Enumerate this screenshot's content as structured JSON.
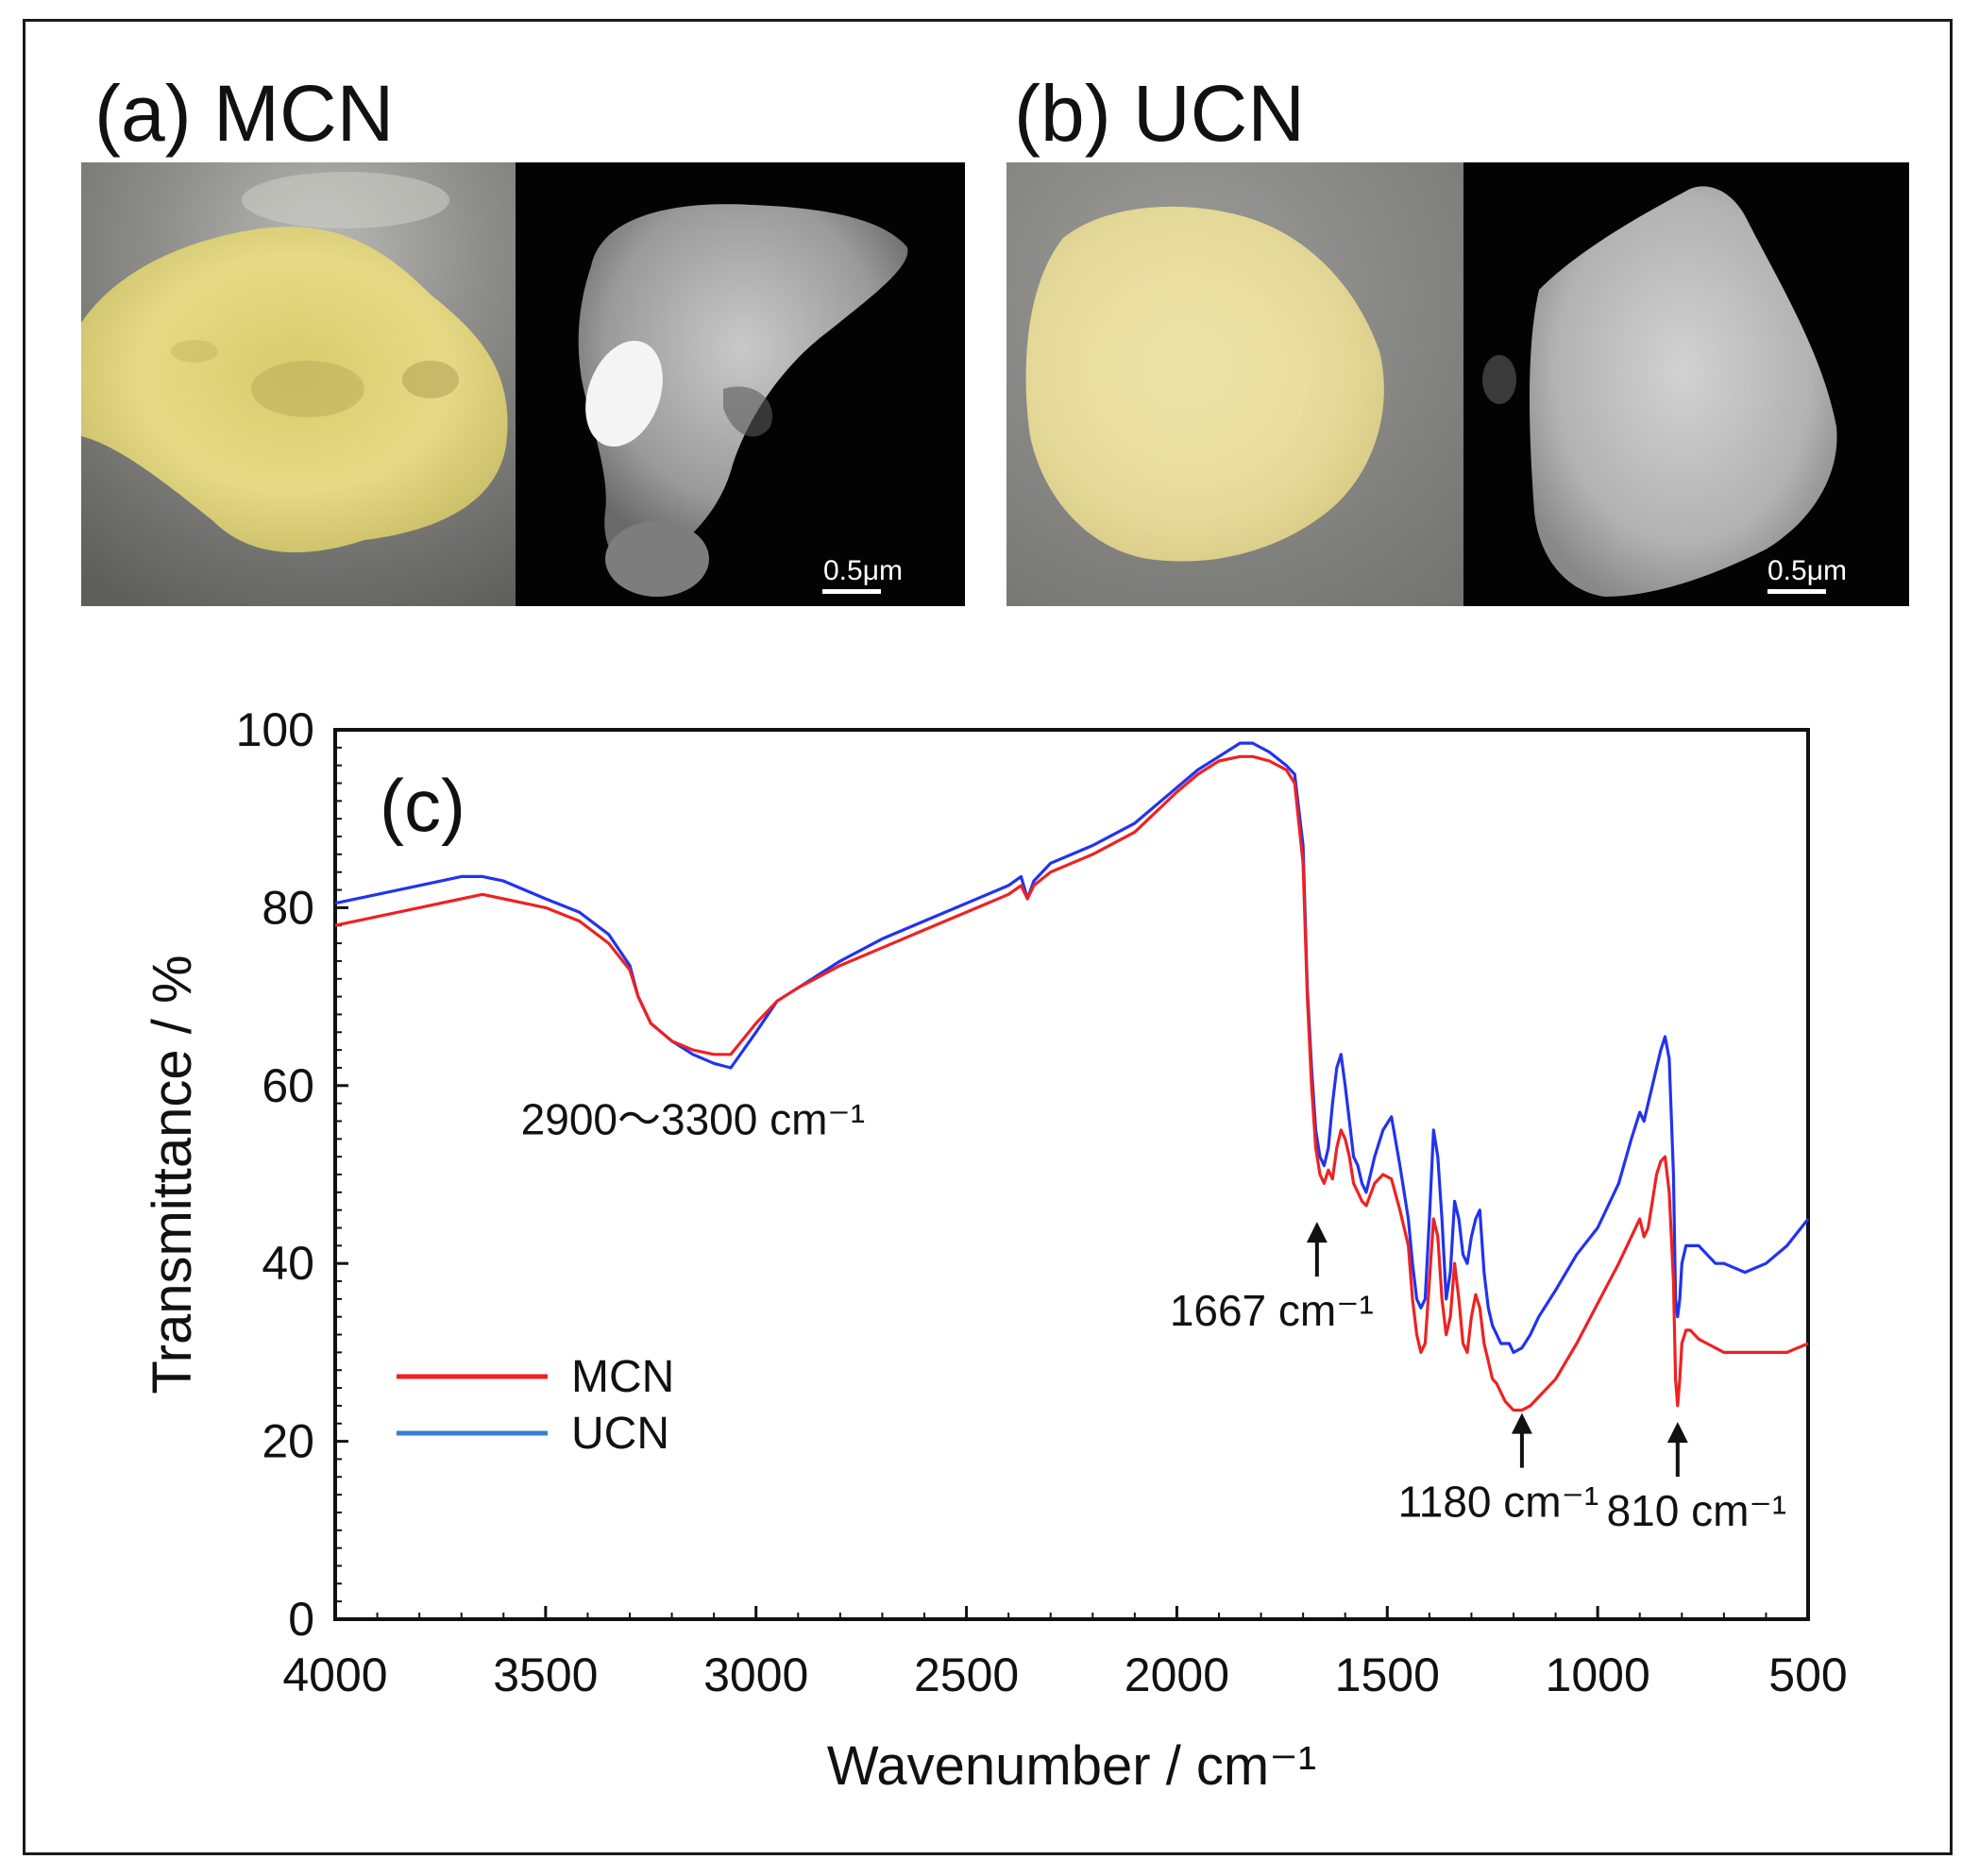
{
  "panels": {
    "a": {
      "label": "(a) MCN",
      "scale_label": "0.5μm"
    },
    "b": {
      "label": "(b) UCN",
      "scale_label": "0.5μm"
    }
  },
  "colors": {
    "mcn": "#ee2222",
    "ucn": "#2233ee",
    "ucn_legend": "#3a7fd0",
    "powder_mcn": "#e4d77c",
    "powder_ucn": "#ebe0a0",
    "background_gray": "#8e8e8c"
  },
  "chart_data": {
    "type": "line",
    "panel_label": "(c)",
    "xlabel": "Wavenumber / cm⁻¹",
    "ylabel": "Transmittance / %",
    "xlim": [
      4000,
      500
    ],
    "ylim": [
      0,
      100
    ],
    "xticks": [
      4000,
      3500,
      3000,
      2500,
      2000,
      1500,
      1000,
      500
    ],
    "yticks": [
      0,
      20,
      40,
      60,
      80,
      100
    ],
    "legend": {
      "position": "lower-left",
      "entries": [
        "MCN",
        "UCN"
      ]
    },
    "annotations": [
      {
        "text": "2900～3300 cm⁻¹",
        "x": 3150,
        "y": 54.5,
        "arrow": false
      },
      {
        "text": "1667 cm⁻¹",
        "x": 1667,
        "y": 33,
        "arrow": true
      },
      {
        "text": "1180 cm⁻¹",
        "x": 1180,
        "y": 11.5,
        "arrow": true
      },
      {
        "text": "810 cm⁻¹",
        "x": 810,
        "y": 10.5,
        "arrow": true
      }
    ],
    "series": [
      {
        "name": "MCN",
        "x": [
          4000,
          3900,
          3800,
          3700,
          3650,
          3600,
          3500,
          3420,
          3350,
          3300,
          3280,
          3250,
          3200,
          3150,
          3100,
          3060,
          3000,
          2950,
          2900,
          2800,
          2700,
          2600,
          2500,
          2400,
          2370,
          2355,
          2340,
          2300,
          2200,
          2100,
          2000,
          1950,
          1900,
          1850,
          1820,
          1780,
          1740,
          1720,
          1700,
          1690,
          1680,
          1670,
          1660,
          1650,
          1640,
          1630,
          1620,
          1610,
          1600,
          1590,
          1580,
          1570,
          1560,
          1550,
          1530,
          1510,
          1490,
          1470,
          1450,
          1440,
          1430,
          1420,
          1410,
          1400,
          1390,
          1380,
          1370,
          1360,
          1350,
          1340,
          1330,
          1320,
          1310,
          1300,
          1290,
          1280,
          1270,
          1260,
          1250,
          1240,
          1230,
          1220,
          1210,
          1200,
          1180,
          1160,
          1140,
          1100,
          1050,
          1000,
          950,
          920,
          900,
          890,
          880,
          870,
          860,
          850,
          840,
          830,
          820,
          815,
          810,
          805,
          800,
          790,
          780,
          760,
          740,
          720,
          700,
          650,
          600,
          550,
          500
        ],
        "values": [
          78,
          79,
          80,
          81,
          81.5,
          81,
          80,
          78.5,
          76,
          73,
          70,
          67,
          65,
          64,
          63.5,
          63.5,
          67,
          69.5,
          71,
          73.5,
          75.5,
          77.5,
          79.5,
          81.5,
          82.5,
          81,
          82.5,
          84,
          86,
          88.5,
          93,
          95,
          96.5,
          97,
          97,
          96.5,
          95.5,
          94,
          85,
          70,
          60,
          53,
          50,
          49,
          50.5,
          49.5,
          53,
          55,
          54,
          52,
          49,
          48,
          47,
          46.5,
          49,
          50,
          49.5,
          46,
          42,
          36,
          32,
          30,
          31,
          38,
          45,
          43,
          36,
          32,
          34,
          40,
          36,
          31,
          30,
          34,
          36.5,
          35,
          31,
          29,
          27,
          26.5,
          25.5,
          24.5,
          24,
          23.5,
          23.5,
          24,
          25,
          27,
          31,
          35.5,
          40,
          43,
          45,
          43,
          44,
          47,
          50,
          51.5,
          52,
          48,
          38,
          27,
          24,
          27,
          31,
          32.5,
          32.5,
          31.5,
          31,
          30.5,
          30,
          30,
          30,
          30,
          31
        ]
      },
      {
        "name": "UCN",
        "x": [
          4000,
          3900,
          3800,
          3700,
          3650,
          3600,
          3500,
          3420,
          3350,
          3300,
          3280,
          3250,
          3200,
          3150,
          3100,
          3060,
          3000,
          2950,
          2900,
          2800,
          2700,
          2600,
          2500,
          2400,
          2370,
          2355,
          2340,
          2300,
          2200,
          2100,
          2000,
          1950,
          1900,
          1850,
          1820,
          1780,
          1740,
          1720,
          1700,
          1690,
          1680,
          1670,
          1660,
          1650,
          1640,
          1630,
          1620,
          1610,
          1600,
          1590,
          1580,
          1570,
          1560,
          1550,
          1530,
          1510,
          1490,
          1470,
          1450,
          1440,
          1430,
          1420,
          1410,
          1400,
          1390,
          1380,
          1370,
          1360,
          1350,
          1340,
          1330,
          1320,
          1310,
          1300,
          1290,
          1280,
          1270,
          1260,
          1250,
          1240,
          1230,
          1220,
          1210,
          1200,
          1180,
          1160,
          1140,
          1100,
          1050,
          1000,
          950,
          920,
          900,
          890,
          880,
          870,
          860,
          850,
          840,
          830,
          820,
          815,
          810,
          805,
          800,
          790,
          780,
          760,
          740,
          720,
          700,
          650,
          600,
          550,
          500
        ],
        "values": [
          80.5,
          81.5,
          82.5,
          83.5,
          83.5,
          83,
          81,
          79.5,
          77,
          73.5,
          70,
          67,
          65,
          63.5,
          62.5,
          62,
          66,
          69.5,
          71,
          74,
          76.5,
          78.5,
          80.5,
          82.5,
          83.5,
          81,
          83,
          85,
          87,
          89.5,
          93.5,
          95.5,
          97,
          98.5,
          98.5,
          97.5,
          96,
          95,
          87,
          71,
          62,
          55,
          52,
          51,
          53,
          58,
          62,
          63.5,
          60,
          56,
          52,
          51,
          49,
          48,
          52,
          55,
          56.5,
          51,
          45,
          40,
          36,
          35,
          36,
          45,
          55,
          52,
          45,
          36,
          39,
          47,
          45,
          41,
          40,
          43,
          45,
          46,
          39,
          35,
          33,
          32,
          31,
          31,
          31,
          30,
          30.5,
          32,
          34,
          37,
          41,
          44,
          49,
          54,
          57,
          56,
          58,
          60,
          62,
          64,
          65.5,
          63,
          50,
          36,
          34,
          36,
          40,
          42,
          42,
          42,
          41,
          40,
          40,
          39,
          40,
          42,
          45
        ]
      }
    ]
  }
}
